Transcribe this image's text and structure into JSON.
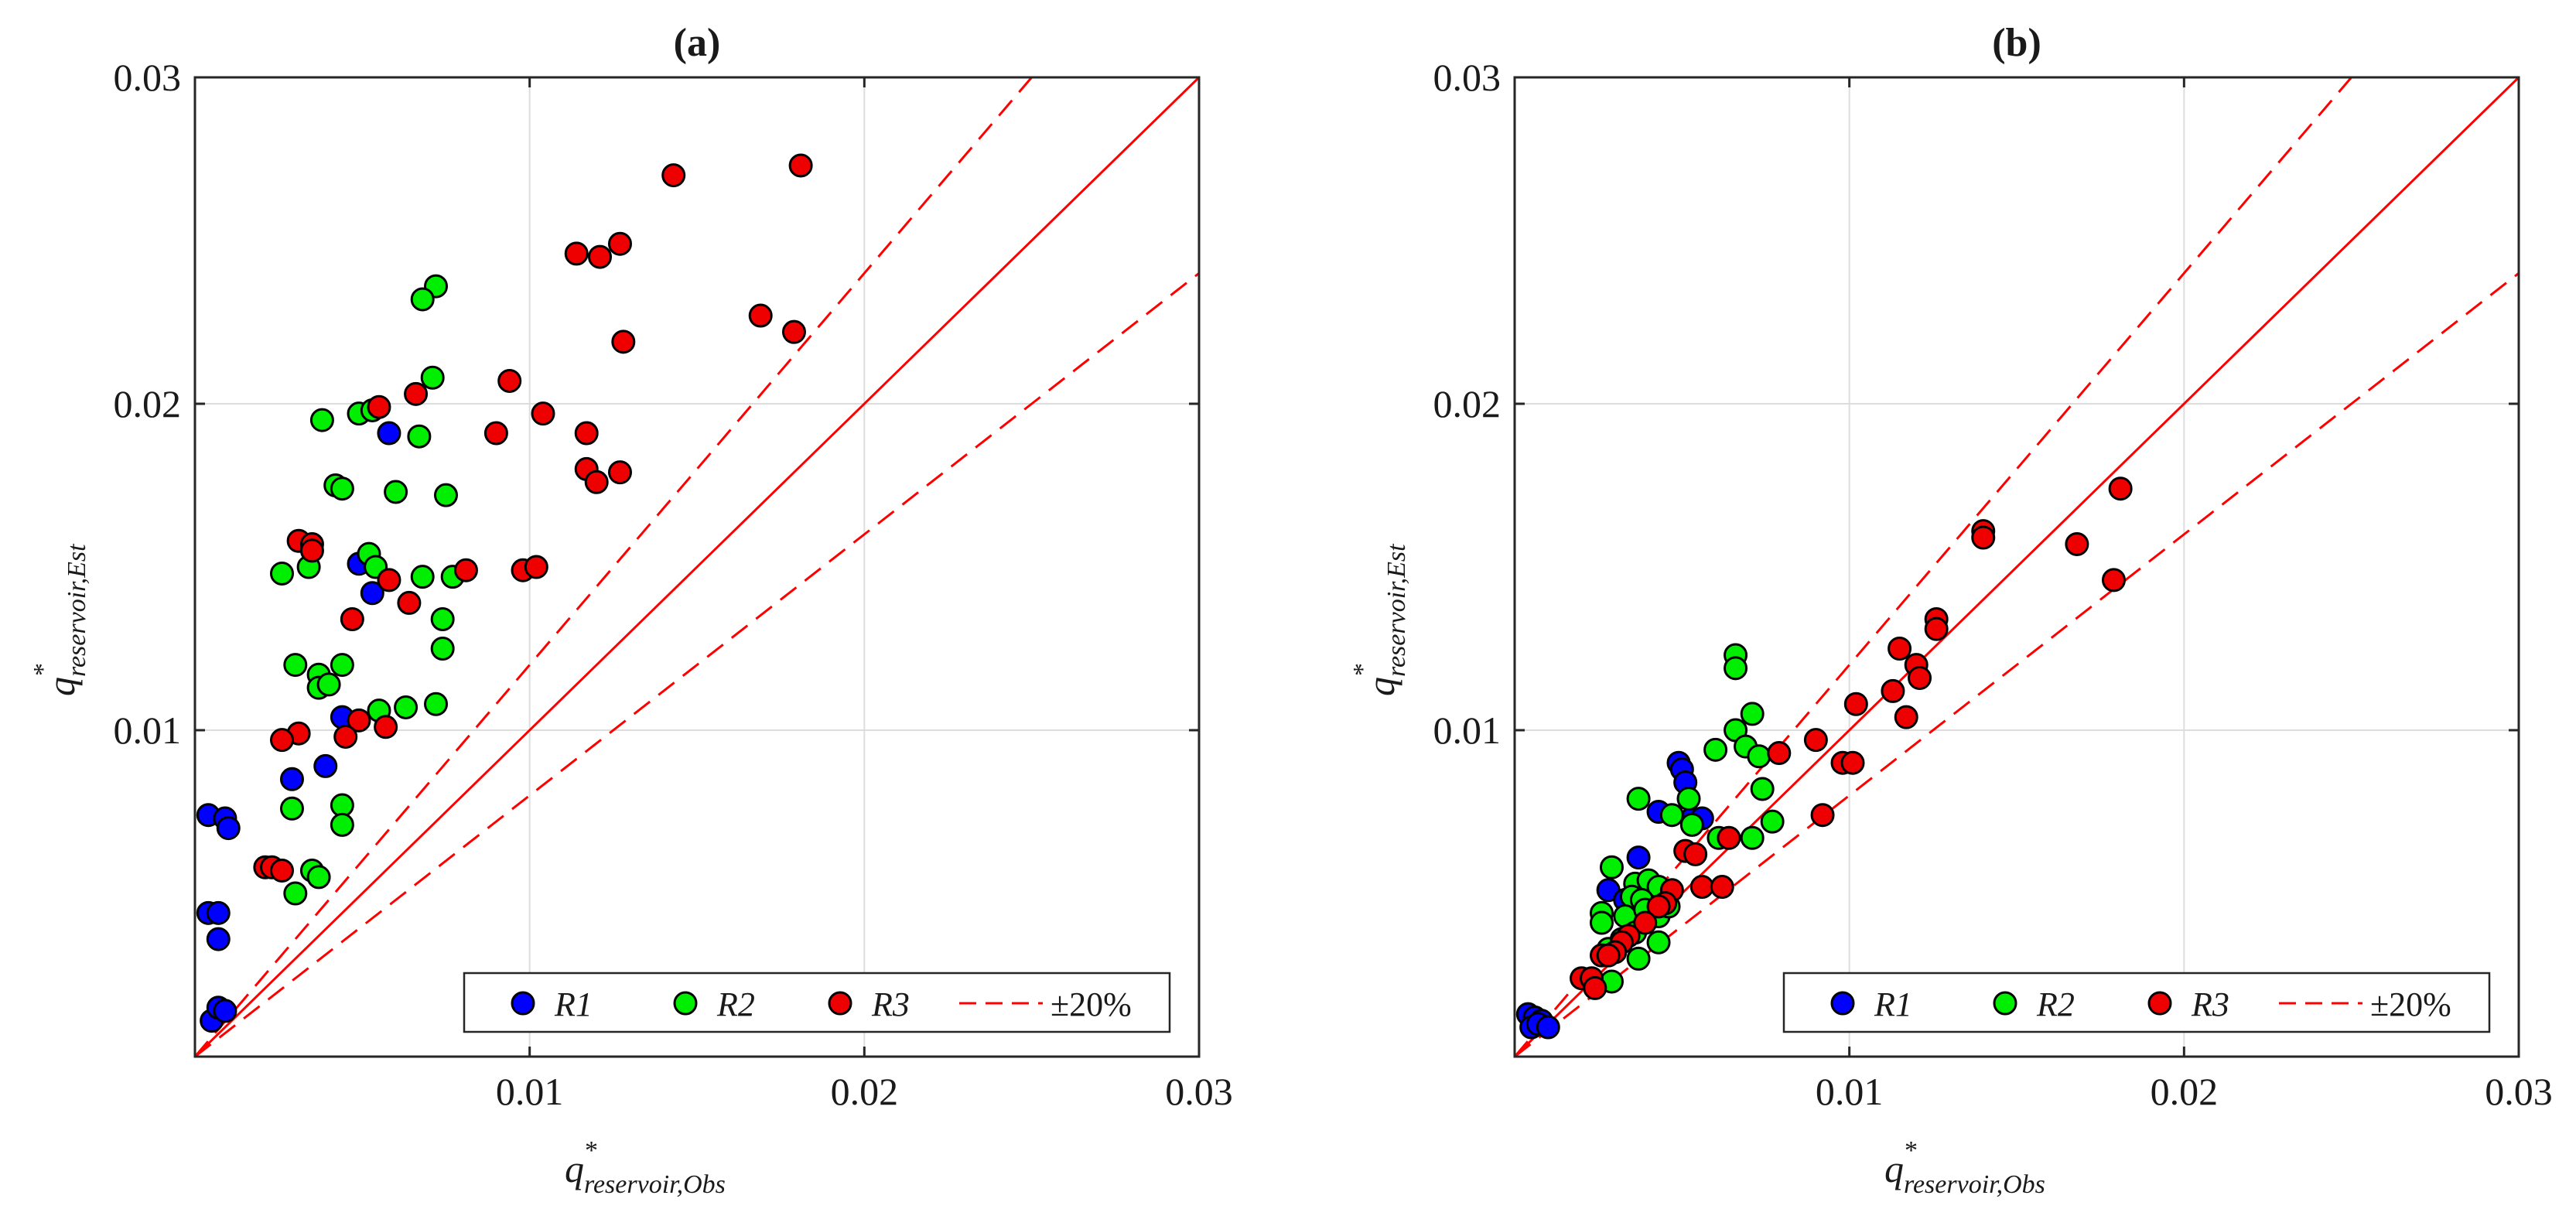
{
  "colors": {
    "R1": "#0000ff",
    "R2": "#00ee00",
    "R3": "#ee0000",
    "line": "#ff0000",
    "grid": "#dddddd",
    "axis": "#262626"
  },
  "chart_data": [
    {
      "type": "scatter",
      "title": "(a)",
      "xlabel": {
        "base": "q",
        "sup": "*",
        "sub": "reservoir,Obs"
      },
      "ylabel": {
        "base": "q",
        "sup": "*",
        "sub": "reservoir,Est"
      },
      "xlim": [
        0,
        0.03
      ],
      "ylim": [
        0,
        0.03
      ],
      "xticks": [
        "0.01",
        "0.02",
        "0.03"
      ],
      "yticks": [
        "0.01",
        "0.02",
        "0.03"
      ],
      "grid": true,
      "legend_position": "bottom-right",
      "reference_lines": [
        {
          "name": "1:1",
          "slope": 1.0,
          "style": "solid"
        },
        {
          "name": "±20%",
          "slope": 1.2,
          "style": "dashed"
        },
        {
          "name": "±20%",
          "slope": 0.8,
          "style": "dashed"
        }
      ],
      "legend": [
        "R1",
        "R2",
        "R3",
        "±20%"
      ],
      "series": [
        {
          "name": "R1",
          "color": "#0000ff",
          "points": [
            [
              0.0004,
              0.0074
            ],
            [
              0.0009,
              0.0073
            ],
            [
              0.001,
              0.007
            ],
            [
              0.0004,
              0.0044
            ],
            [
              0.0007,
              0.0044
            ],
            [
              0.0007,
              0.0036
            ],
            [
              0.0005,
              0.0011
            ],
            [
              0.0007,
              0.0015
            ],
            [
              0.0009,
              0.0014
            ],
            [
              0.0058,
              0.0191
            ],
            [
              0.0049,
              0.0151
            ],
            [
              0.0053,
              0.0142
            ],
            [
              0.0044,
              0.0104
            ],
            [
              0.0039,
              0.0089
            ],
            [
              0.0029,
              0.0085
            ]
          ]
        },
        {
          "name": "R2",
          "color": "#00ee00",
          "points": [
            [
              0.0072,
              0.0236
            ],
            [
              0.0068,
              0.0232
            ],
            [
              0.0071,
              0.0208
            ],
            [
              0.0049,
              0.0197
            ],
            [
              0.0038,
              0.0195
            ],
            [
              0.0053,
              0.0198
            ],
            [
              0.0067,
              0.019
            ],
            [
              0.0042,
              0.0175
            ],
            [
              0.0044,
              0.0174
            ],
            [
              0.006,
              0.0173
            ],
            [
              0.0075,
              0.0172
            ],
            [
              0.0052,
              0.0154
            ],
            [
              0.0054,
              0.015
            ],
            [
              0.0026,
              0.0148
            ],
            [
              0.0034,
              0.015
            ],
            [
              0.0068,
              0.0147
            ],
            [
              0.0077,
              0.0147
            ],
            [
              0.0074,
              0.0134
            ],
            [
              0.0074,
              0.0125
            ],
            [
              0.003,
              0.012
            ],
            [
              0.0037,
              0.0117
            ],
            [
              0.0044,
              0.012
            ],
            [
              0.0037,
              0.0113
            ],
            [
              0.004,
              0.0114
            ],
            [
              0.0055,
              0.0106
            ],
            [
              0.0063,
              0.0107
            ],
            [
              0.0072,
              0.0108
            ],
            [
              0.0029,
              0.0076
            ],
            [
              0.0044,
              0.0077
            ],
            [
              0.0044,
              0.0071
            ],
            [
              0.0035,
              0.0057
            ],
            [
              0.0037,
              0.0055
            ],
            [
              0.003,
              0.005
            ]
          ]
        },
        {
          "name": "R3",
          "color": "#ee0000",
          "points": [
            [
              0.0181,
              0.0273
            ],
            [
              0.0143,
              0.027
            ],
            [
              0.0114,
              0.0246
            ],
            [
              0.0121,
              0.0245
            ],
            [
              0.0127,
              0.0249
            ],
            [
              0.0169,
              0.0227
            ],
            [
              0.0179,
              0.0222
            ],
            [
              0.0128,
              0.0219
            ],
            [
              0.0094,
              0.0207
            ],
            [
              0.0066,
              0.0203
            ],
            [
              0.0055,
              0.0199
            ],
            [
              0.0104,
              0.0197
            ],
            [
              0.009,
              0.0191
            ],
            [
              0.0117,
              0.0191
            ],
            [
              0.0117,
              0.018
            ],
            [
              0.012,
              0.0176
            ],
            [
              0.0127,
              0.0179
            ],
            [
              0.0031,
              0.0158
            ],
            [
              0.0035,
              0.0157
            ],
            [
              0.0035,
              0.0155
            ],
            [
              0.0081,
              0.0149
            ],
            [
              0.0098,
              0.0149
            ],
            [
              0.0102,
              0.015
            ],
            [
              0.0058,
              0.0146
            ],
            [
              0.0064,
              0.0139
            ],
            [
              0.0047,
              0.0134
            ],
            [
              0.0049,
              0.0103
            ],
            [
              0.0057,
              0.0101
            ],
            [
              0.0045,
              0.0098
            ],
            [
              0.0031,
              0.0099
            ],
            [
              0.0026,
              0.0097
            ],
            [
              0.0021,
              0.0058
            ],
            [
              0.0023,
              0.0058
            ],
            [
              0.0026,
              0.0057
            ]
          ]
        }
      ]
    },
    {
      "type": "scatter",
      "title": "(b)",
      "xlabel": {
        "base": "q",
        "sup": "*",
        "sub": "reservoir,Obs"
      },
      "ylabel": {
        "base": "q",
        "sup": "*",
        "sub": "reservoir,Est"
      },
      "xlim": [
        0,
        0.03
      ],
      "ylim": [
        0,
        0.03
      ],
      "xticks": [
        "0.01",
        "0.02",
        "0.03"
      ],
      "yticks": [
        "0.01",
        "0.02",
        "0.03"
      ],
      "grid": true,
      "legend_position": "bottom-right",
      "reference_lines": [
        {
          "name": "1:1",
          "slope": 1.0,
          "style": "solid"
        },
        {
          "name": "±20%",
          "slope": 1.2,
          "style": "dashed"
        },
        {
          "name": "±20%",
          "slope": 0.8,
          "style": "dashed"
        }
      ],
      "legend": [
        "R1",
        "R2",
        "R3",
        "±20%"
      ],
      "series": [
        {
          "name": "R1",
          "color": "#0000ff",
          "points": [
            [
              0.0004,
              0.0013
            ],
            [
              0.0006,
              0.0012
            ],
            [
              0.0008,
              0.0011
            ],
            [
              0.0005,
              0.0009
            ],
            [
              0.0007,
              0.001
            ],
            [
              0.001,
              0.0009
            ],
            [
              0.0049,
              0.009
            ],
            [
              0.005,
              0.0088
            ],
            [
              0.0051,
              0.0084
            ],
            [
              0.0043,
              0.0075
            ],
            [
              0.0053,
              0.0073
            ],
            [
              0.0056,
              0.0073
            ],
            [
              0.0037,
              0.0061
            ],
            [
              0.0028,
              0.0051
            ],
            [
              0.0033,
              0.0048
            ]
          ]
        },
        {
          "name": "R2",
          "color": "#00ee00",
          "points": [
            [
              0.0066,
              0.0123
            ],
            [
              0.0066,
              0.0119
            ],
            [
              0.0071,
              0.0105
            ],
            [
              0.0066,
              0.01
            ],
            [
              0.0069,
              0.0095
            ],
            [
              0.0073,
              0.0092
            ],
            [
              0.006,
              0.0094
            ],
            [
              0.0037,
              0.0079
            ],
            [
              0.0052,
              0.0079
            ],
            [
              0.0074,
              0.0082
            ],
            [
              0.0047,
              0.0074
            ],
            [
              0.0077,
              0.0072
            ],
            [
              0.0053,
              0.0071
            ],
            [
              0.0061,
              0.0067
            ],
            [
              0.0071,
              0.0067
            ],
            [
              0.0029,
              0.0058
            ],
            [
              0.0036,
              0.0053
            ],
            [
              0.004,
              0.0054
            ],
            [
              0.0043,
              0.0052
            ],
            [
              0.0035,
              0.0049
            ],
            [
              0.0038,
              0.0048
            ],
            [
              0.0026,
              0.0044
            ],
            [
              0.0033,
              0.0043
            ],
            [
              0.0043,
              0.0043
            ],
            [
              0.0046,
              0.0046
            ],
            [
              0.0026,
              0.0041
            ],
            [
              0.0036,
              0.0038
            ],
            [
              0.0028,
              0.0033
            ],
            [
              0.0037,
              0.003
            ],
            [
              0.0043,
              0.0035
            ],
            [
              0.0029,
              0.0023
            ],
            [
              0.0032,
              0.0036
            ],
            [
              0.0039,
              0.0045
            ]
          ]
        },
        {
          "name": "R3",
          "color": "#ee0000",
          "points": [
            [
              0.0181,
              0.0174
            ],
            [
              0.014,
              0.0161
            ],
            [
              0.014,
              0.0159
            ],
            [
              0.0168,
              0.0157
            ],
            [
              0.0179,
              0.0146
            ],
            [
              0.0126,
              0.0134
            ],
            [
              0.0126,
              0.0131
            ],
            [
              0.0115,
              0.0125
            ],
            [
              0.012,
              0.012
            ],
            [
              0.0121,
              0.0116
            ],
            [
              0.0113,
              0.0112
            ],
            [
              0.0117,
              0.0104
            ],
            [
              0.0102,
              0.0108
            ],
            [
              0.009,
              0.0097
            ],
            [
              0.0098,
              0.009
            ],
            [
              0.0101,
              0.009
            ],
            [
              0.0079,
              0.0093
            ],
            [
              0.0092,
              0.0074
            ],
            [
              0.0051,
              0.0063
            ],
            [
              0.0054,
              0.0062
            ],
            [
              0.0056,
              0.0052
            ],
            [
              0.0062,
              0.0052
            ],
            [
              0.0064,
              0.0067
            ],
            [
              0.0047,
              0.0051
            ],
            [
              0.0045,
              0.0047
            ],
            [
              0.0043,
              0.0046
            ],
            [
              0.0039,
              0.0041
            ],
            [
              0.0034,
              0.0037
            ],
            [
              0.0032,
              0.0035
            ],
            [
              0.003,
              0.0032
            ],
            [
              0.0026,
              0.0031
            ],
            [
              0.0028,
              0.0031
            ],
            [
              0.002,
              0.0024
            ],
            [
              0.0023,
              0.0024
            ],
            [
              0.0024,
              0.0021
            ]
          ]
        }
      ]
    }
  ]
}
